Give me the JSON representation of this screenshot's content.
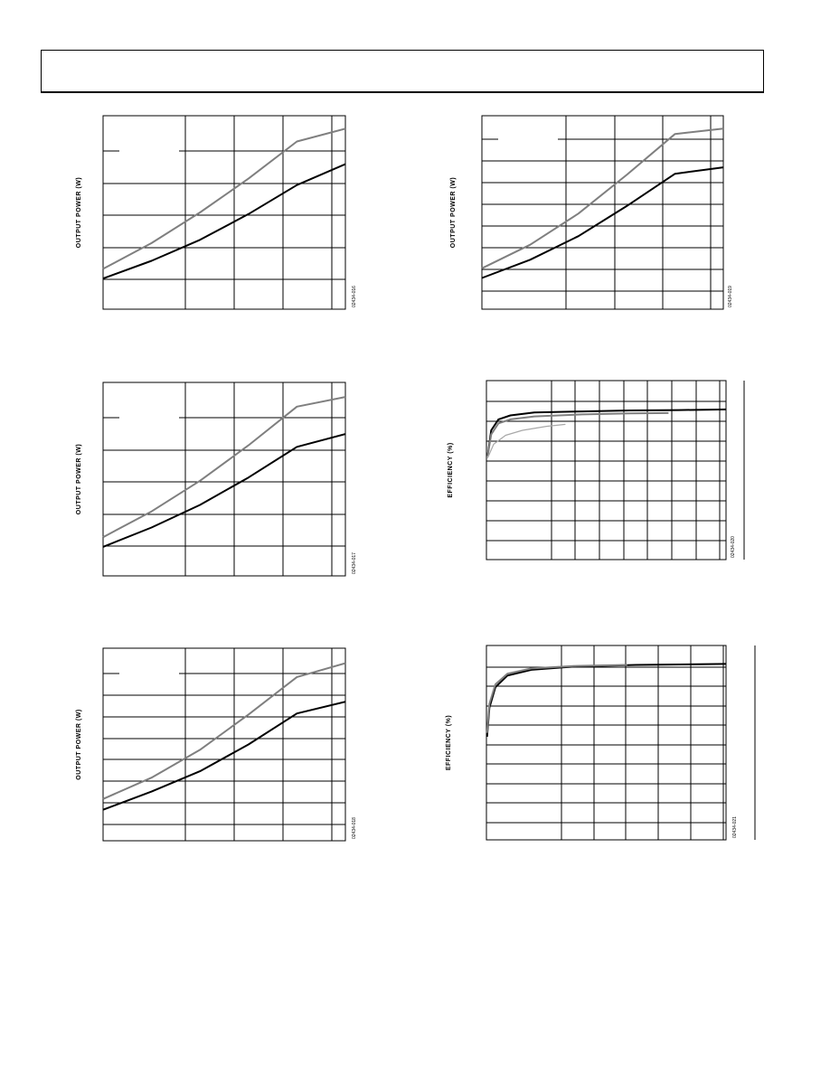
{
  "colors": {
    "series_dark": "#000000",
    "series_gray": "#7f7f7f",
    "grid": "#000000"
  },
  "chart_data": [
    {
      "type": "line",
      "ylabel": "OUTPUT POWER (W)",
      "figure_id": "02434-016",
      "grid": true,
      "xlim": [
        0,
        5
      ],
      "ylim": [
        0,
        6
      ],
      "series": [
        {
          "color": "gray",
          "x": [
            0,
            1,
            2,
            3,
            4,
            5
          ],
          "y": [
            1.25,
            2.05,
            3.0,
            4.05,
            5.2,
            5.6
          ]
        },
        {
          "color": "dark",
          "x": [
            0,
            1,
            2,
            3,
            4,
            5
          ],
          "y": [
            0.95,
            1.5,
            2.15,
            2.95,
            3.85,
            4.5
          ]
        }
      ]
    },
    {
      "type": "line",
      "ylabel": "OUTPUT POWER (W)",
      "figure_id": "02434-019",
      "grid": true,
      "xlim": [
        0,
        5
      ],
      "ylim": [
        0,
        9
      ],
      "series": [
        {
          "color": "gray",
          "x": [
            0,
            1,
            2,
            3,
            4,
            5
          ],
          "y": [
            1.9,
            3.0,
            4.45,
            6.25,
            8.15,
            8.4
          ]
        },
        {
          "color": "dark",
          "x": [
            0,
            1,
            2,
            3,
            4,
            5
          ],
          "y": [
            1.45,
            2.3,
            3.4,
            4.8,
            6.3,
            6.6
          ]
        }
      ]
    },
    {
      "type": "line",
      "ylabel": "OUTPUT POWER (W)",
      "figure_id": "02434-017",
      "grid": true,
      "xlim": [
        0,
        5
      ],
      "ylim": [
        0,
        6
      ],
      "series": [
        {
          "color": "gray",
          "x": [
            0,
            1,
            2,
            3,
            4,
            5
          ],
          "y": [
            1.2,
            2.0,
            2.95,
            4.05,
            5.25,
            5.55
          ]
        },
        {
          "color": "dark",
          "x": [
            0,
            1,
            2,
            3,
            4,
            5
          ],
          "y": [
            0.9,
            1.5,
            2.2,
            3.05,
            4.0,
            4.4
          ]
        }
      ]
    },
    {
      "type": "line",
      "ylabel": "EFFICIENCY (%)",
      "figure_id": "02434-020",
      "grid": true,
      "xlim": [
        0,
        10
      ],
      "ylim": [
        0,
        9
      ],
      "series": [
        {
          "color": "dark",
          "x": [
            0.05,
            0.2,
            0.5,
            1,
            2,
            4,
            6,
            8,
            10
          ],
          "y": [
            5.2,
            6.5,
            7.05,
            7.25,
            7.4,
            7.45,
            7.5,
            7.52,
            7.55
          ]
        },
        {
          "color": "gray",
          "x": [
            0.05,
            0.2,
            0.5,
            1,
            2,
            4,
            6,
            7.6
          ],
          "y": [
            5.2,
            6.3,
            6.85,
            7.05,
            7.2,
            7.3,
            7.35,
            7.37
          ]
        },
        {
          "color": "lightgray",
          "x": [
            0.05,
            0.3,
            0.8,
            1.5,
            2.5,
            3.3
          ],
          "y": [
            5.1,
            5.8,
            6.25,
            6.5,
            6.7,
            6.8
          ]
        }
      ]
    },
    {
      "type": "line",
      "ylabel": "OUTPUT POWER (W)",
      "figure_id": "02434-018",
      "grid": true,
      "xlim": [
        0,
        5
      ],
      "ylim": [
        0,
        9
      ],
      "series": [
        {
          "color": "gray",
          "x": [
            0,
            1,
            2,
            3,
            4,
            5
          ],
          "y": [
            1.95,
            2.95,
            4.25,
            5.9,
            7.65,
            8.3
          ]
        },
        {
          "color": "dark",
          "x": [
            0,
            1,
            2,
            3,
            4,
            5
          ],
          "y": [
            1.45,
            2.3,
            3.25,
            4.5,
            5.95,
            6.5
          ]
        }
      ]
    },
    {
      "type": "line",
      "ylabel": "EFFICIENCY (%)",
      "figure_id": "02434-021",
      "grid": true,
      "xlim": [
        0,
        8
      ],
      "ylim": [
        0,
        10
      ],
      "series": [
        {
          "color": "dark",
          "x": [
            0.02,
            0.1,
            0.3,
            0.7,
            1.5,
            3,
            5,
            8
          ],
          "y": [
            5.3,
            6.8,
            7.85,
            8.45,
            8.75,
            8.92,
            9.0,
            9.05
          ]
        },
        {
          "color": "gray",
          "x": [
            0.02,
            0.1,
            0.3,
            0.7,
            1.5,
            3,
            4.7
          ],
          "y": [
            5.5,
            7.0,
            8.0,
            8.55,
            8.82,
            8.95,
            9.0
          ]
        }
      ]
    }
  ]
}
